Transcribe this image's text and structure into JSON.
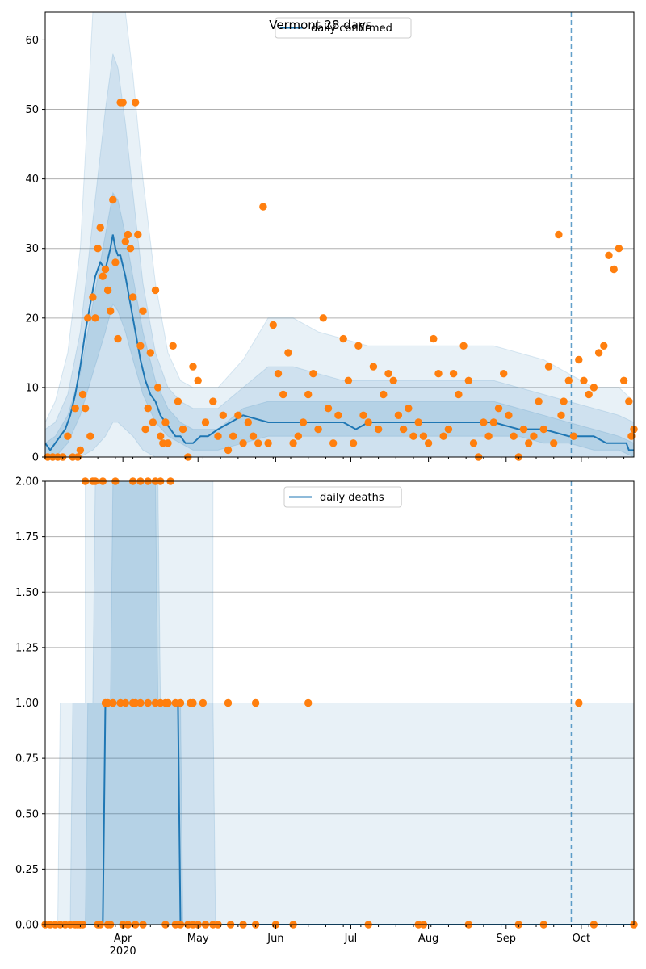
{
  "colors": {
    "line": "#1f77b4",
    "band": "#1f77b4",
    "points": "#ff7f0e",
    "grid": "#b0b0b0",
    "vline": "#1f77b4"
  },
  "chart_data": [
    {
      "type": "line",
      "title": "Vermont 28 days",
      "legend": {
        "entries": [
          "daily confirmed"
        ],
        "placement": "top-center"
      },
      "ylim": [
        0,
        64
      ],
      "yticks": [
        0,
        10,
        20,
        30,
        40,
        50,
        60
      ],
      "ytick_labels": [
        "0",
        "10",
        "20",
        "30",
        "40",
        "50",
        "60"
      ],
      "grid": "y",
      "xlim_day": [
        1,
        236
      ],
      "xlim_dates": [
        "2020-03-01",
        "2020-10-23"
      ],
      "vline_date": "2020-09-27",
      "series": [
        {
          "name": "daily confirmed",
          "kind": "line",
          "x_day": [
            1,
            3,
            5,
            7,
            9,
            11,
            13,
            15,
            17,
            19,
            21,
            23,
            25,
            27,
            28,
            29,
            30,
            31,
            33,
            35,
            37,
            39,
            41,
            43,
            45,
            47,
            49,
            51,
            53,
            55,
            57,
            60,
            63,
            66,
            70,
            75,
            80,
            90,
            100,
            110,
            120,
            125,
            130,
            140,
            150,
            160,
            170,
            180,
            190,
            200,
            210,
            215,
            220,
            225,
            230,
            233,
            234,
            236
          ],
          "y": [
            2,
            1,
            2,
            3,
            4,
            6,
            9,
            13,
            18,
            22,
            26,
            28,
            27,
            30,
            32,
            30,
            29,
            29,
            26,
            22,
            18,
            14,
            11,
            9,
            8,
            6,
            5,
            4,
            3,
            3,
            2,
            2,
            3,
            3,
            4,
            5,
            6,
            5,
            5,
            5,
            5,
            4,
            5,
            5,
            5,
            5,
            5,
            5,
            4,
            4,
            3,
            3,
            3,
            2,
            2,
            2,
            1,
            1
          ]
        },
        {
          "name": "band-outer",
          "kind": "band",
          "x_day": [
            1,
            5,
            10,
            15,
            18,
            20,
            22,
            25,
            27,
            29,
            31,
            33,
            36,
            40,
            45,
            50,
            55,
            60,
            65,
            70,
            80,
            90,
            100,
            110,
            120,
            130,
            140,
            150,
            160,
            170,
            180,
            190,
            200,
            210,
            220,
            230,
            236
          ],
          "lower": [
            0,
            0,
            0,
            0,
            0,
            0,
            0,
            0,
            0,
            0,
            0,
            0,
            0,
            0,
            0,
            0,
            0,
            0,
            0,
            0,
            0,
            0,
            0,
            0,
            0,
            0,
            0,
            0,
            0,
            0,
            0,
            0,
            0,
            0,
            0,
            0,
            0
          ],
          "upper": [
            5,
            8,
            15,
            30,
            50,
            64,
            64,
            64,
            64,
            64,
            64,
            64,
            55,
            40,
            25,
            15,
            11,
            10,
            10,
            10,
            14,
            20,
            20,
            18,
            17,
            16,
            16,
            16,
            16,
            16,
            16,
            15,
            14,
            12,
            10,
            10,
            8
          ]
        },
        {
          "name": "band-middle",
          "kind": "band",
          "x_day": [
            1,
            5,
            10,
            15,
            20,
            25,
            28,
            30,
            33,
            36,
            40,
            45,
            50,
            55,
            60,
            70,
            80,
            90,
            100,
            110,
            120,
            130,
            140,
            150,
            160,
            170,
            180,
            190,
            200,
            210,
            220,
            230,
            236
          ],
          "lower": [
            0,
            0,
            0,
            0,
            1,
            3,
            5,
            5,
            4,
            3,
            1,
            0,
            0,
            0,
            0,
            0,
            0,
            0,
            0,
            0,
            0,
            0,
            0,
            0,
            0,
            0,
            0,
            0,
            0,
            0,
            0,
            0,
            0
          ],
          "upper": [
            4,
            5,
            9,
            18,
            34,
            50,
            58,
            56,
            48,
            38,
            25,
            15,
            10,
            8,
            7,
            7,
            10,
            13,
            13,
            12,
            11,
            11,
            11,
            11,
            11,
            11,
            11,
            10,
            9,
            8,
            7,
            6,
            5
          ]
        },
        {
          "name": "band-inner",
          "kind": "band",
          "x_day": [
            1,
            5,
            10,
            15,
            20,
            25,
            28,
            30,
            33,
            36,
            40,
            45,
            50,
            55,
            60,
            70,
            80,
            90,
            100,
            110,
            120,
            130,
            140,
            150,
            160,
            170,
            180,
            190,
            200,
            210,
            220,
            230,
            236
          ],
          "lower": [
            0,
            0,
            2,
            6,
            12,
            18,
            22,
            21,
            18,
            14,
            9,
            5,
            3,
            2,
            1,
            1,
            2,
            3,
            3,
            3,
            3,
            3,
            3,
            3,
            3,
            3,
            3,
            3,
            2,
            2,
            1,
            1,
            0
          ],
          "upper": [
            2,
            3,
            6,
            12,
            22,
            32,
            38,
            37,
            32,
            26,
            18,
            11,
            7,
            5,
            4,
            4,
            7,
            8,
            8,
            8,
            8,
            8,
            8,
            8,
            8,
            8,
            8,
            7,
            6,
            5,
            4,
            3,
            2
          ]
        },
        {
          "name": "observed",
          "kind": "scatter",
          "x_day": [
            2,
            4,
            6,
            8,
            10,
            12,
            13,
            14,
            15,
            16,
            17,
            18,
            19,
            20,
            21,
            22,
            23,
            24,
            25,
            26,
            27,
            28,
            29,
            30,
            31,
            32,
            33,
            34,
            35,
            36,
            37,
            38,
            39,
            40,
            41,
            42,
            43,
            44,
            45,
            46,
            47,
            48,
            49,
            50,
            52,
            54,
            56,
            58,
            60,
            62,
            65,
            68,
            70,
            72,
            74,
            76,
            78,
            80,
            82,
            84,
            86,
            88,
            90,
            92,
            94,
            96,
            98,
            100,
            102,
            104,
            106,
            108,
            110,
            112,
            114,
            116,
            118,
            120,
            122,
            124,
            126,
            128,
            130,
            132,
            134,
            136,
            138,
            140,
            142,
            144,
            146,
            148,
            150,
            152,
            154,
            156,
            158,
            160,
            162,
            164,
            166,
            168,
            170,
            172,
            174,
            176,
            178,
            180,
            182,
            184,
            186,
            188,
            190,
            192,
            194,
            196,
            198,
            200,
            202,
            204,
            206,
            207,
            208,
            210,
            212,
            214,
            216,
            218,
            220,
            222,
            224,
            226,
            228,
            230,
            232,
            234,
            235,
            236
          ],
          "y": [
            0,
            0,
            0,
            0,
            3,
            0,
            7,
            0,
            1,
            9,
            7,
            20,
            3,
            23,
            20,
            30,
            33,
            26,
            27,
            24,
            21,
            37,
            28,
            17,
            51,
            51,
            31,
            32,
            30,
            23,
            51,
            32,
            16,
            21,
            4,
            7,
            15,
            5,
            24,
            10,
            3,
            2,
            5,
            2,
            16,
            8,
            4,
            0,
            13,
            11,
            5,
            8,
            3,
            6,
            1,
            3,
            6,
            2,
            5,
            3,
            2,
            36,
            2,
            19,
            12,
            9,
            15,
            2,
            3,
            5,
            9,
            12,
            4,
            20,
            7,
            2,
            6,
            17,
            11,
            2,
            16,
            6,
            5,
            13,
            4,
            9,
            12,
            11,
            6,
            4,
            7,
            3,
            5,
            3,
            2,
            17,
            12,
            3,
            4,
            12,
            9,
            16,
            11,
            2,
            0,
            5,
            3,
            5,
            7,
            12,
            6,
            3,
            0,
            4,
            2,
            3,
            8,
            4,
            13,
            2,
            32,
            6,
            8,
            11,
            3,
            14,
            11,
            9,
            10,
            15,
            16,
            29,
            27,
            30,
            11,
            8,
            3,
            4
          ]
        }
      ]
    },
    {
      "type": "line",
      "legend": {
        "entries": [
          "daily deaths"
        ],
        "placement": "top-center"
      },
      "ylim": [
        0,
        2
      ],
      "yticks": [
        0,
        0.25,
        0.5,
        0.75,
        1.0,
        1.25,
        1.5,
        1.75,
        2.0
      ],
      "ytick_labels": [
        "0.00",
        "0.25",
        "0.50",
        "0.75",
        "1.00",
        "1.25",
        "1.50",
        "1.75",
        "2.00"
      ],
      "xticks_dates": [
        "2020-04-01",
        "2020-05-01",
        "2020-06-01",
        "2020-07-01",
        "2020-08-01",
        "2020-09-01",
        "2020-10-01"
      ],
      "xtick_labels": [
        "Apr",
        "May",
        "Jun",
        "Jul",
        "Aug",
        "Sep",
        "Oct"
      ],
      "xtick_year": "2020",
      "grid": "y",
      "xlim_day": [
        1,
        236
      ],
      "xlim_dates": [
        "2020-03-01",
        "2020-10-23"
      ],
      "vline_date": "2020-09-27",
      "series": [
        {
          "name": "daily deaths",
          "kind": "line",
          "x_day": [
            1,
            24,
            24,
            25,
            53,
            54,
            55,
            236
          ],
          "y": [
            0,
            0,
            0,
            1,
            1,
            1,
            0,
            0
          ]
        },
        {
          "name": "band-outer",
          "kind": "band",
          "x_day": [
            1,
            6,
            7,
            12,
            13,
            17,
            17,
            68,
            68,
            96,
            96,
            236
          ],
          "lower": [
            0,
            0,
            0,
            0,
            0,
            0,
            0,
            0,
            0,
            0,
            0,
            0
          ],
          "upper": [
            0,
            0,
            1,
            1,
            1,
            1,
            2,
            2,
            1,
            1,
            1,
            1
          ]
        },
        {
          "name": "band-middle",
          "kind": "band",
          "x_day": [
            1,
            11,
            12,
            20,
            21,
            45,
            46,
            51,
            52,
            68,
            69,
            100,
            101,
            236
          ],
          "lower": [
            0,
            0,
            0,
            0,
            0,
            0,
            0,
            0,
            0,
            0,
            0,
            0,
            0,
            0
          ],
          "upper": [
            0,
            0,
            1,
            1,
            2,
            2,
            1,
            1,
            1,
            1,
            0,
            0,
            0,
            0
          ]
        },
        {
          "name": "band-inner",
          "kind": "band",
          "x_day": [
            1,
            17,
            18,
            27,
            28,
            46,
            47,
            55,
            56,
            236
          ],
          "lower": [
            0,
            0,
            0,
            0,
            0,
            0,
            0,
            0,
            0,
            0
          ],
          "upper": [
            0,
            0,
            1,
            1,
            2,
            2,
            1,
            1,
            0,
            0
          ]
        },
        {
          "name": "observed",
          "kind": "scatter",
          "x_day": [
            1,
            3,
            5,
            7,
            9,
            11,
            13,
            14,
            15,
            16,
            17,
            20,
            21,
            22,
            23,
            24,
            26,
            27,
            29,
            32,
            34,
            36,
            37,
            39,
            40,
            42,
            45,
            47,
            49,
            51,
            53,
            55,
            58,
            60,
            62,
            65,
            68,
            70,
            75,
            80,
            85,
            93,
            100,
            130,
            150,
            152,
            170,
            190,
            200,
            220,
            236,
            25,
            26,
            28,
            31,
            33,
            36,
            37,
            39,
            42,
            45,
            47,
            49,
            50,
            53,
            55,
            59,
            60,
            64,
            74,
            85,
            106,
            214
          ],
          "y": [
            0,
            0,
            0,
            0,
            0,
            0,
            0,
            0,
            0,
            0,
            2,
            2,
            2,
            0,
            0,
            2,
            0,
            0,
            2,
            0,
            0,
            2,
            0,
            2,
            0,
            2,
            2,
            2,
            0,
            2,
            0,
            0,
            0,
            0,
            0,
            0,
            0,
            0,
            0,
            0,
            0,
            0,
            0,
            0,
            0,
            0,
            0,
            0,
            0,
            0,
            0,
            1,
            1,
            1,
            1,
            1,
            1,
            1,
            1,
            1,
            1,
            1,
            1,
            1,
            1,
            1,
            1,
            1,
            1,
            1,
            1,
            1,
            1
          ]
        }
      ]
    }
  ]
}
